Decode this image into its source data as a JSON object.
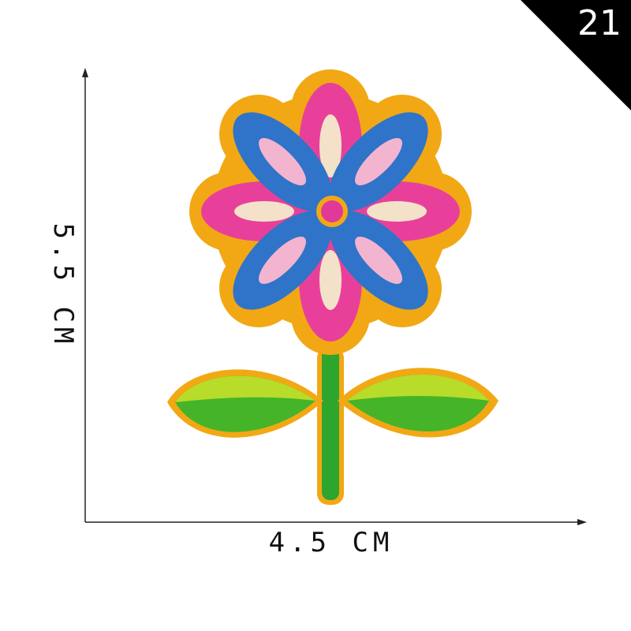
{
  "item_number": "21",
  "dimensions": {
    "width_label": "4.5 CM",
    "height_label": "5.5 CM"
  },
  "patch": {
    "subject": "embroidered flower patch",
    "colors": {
      "border": "#f2a814",
      "petal_pink": "#e8409a",
      "petal_blue": "#2f74c8",
      "petal_light": "#f3e2c9",
      "center": "#e0399a",
      "leaf": "#46b428",
      "leaf_light": "#b7dc2a",
      "stem": "#2ea52c"
    }
  },
  "badge_color": "#000000"
}
